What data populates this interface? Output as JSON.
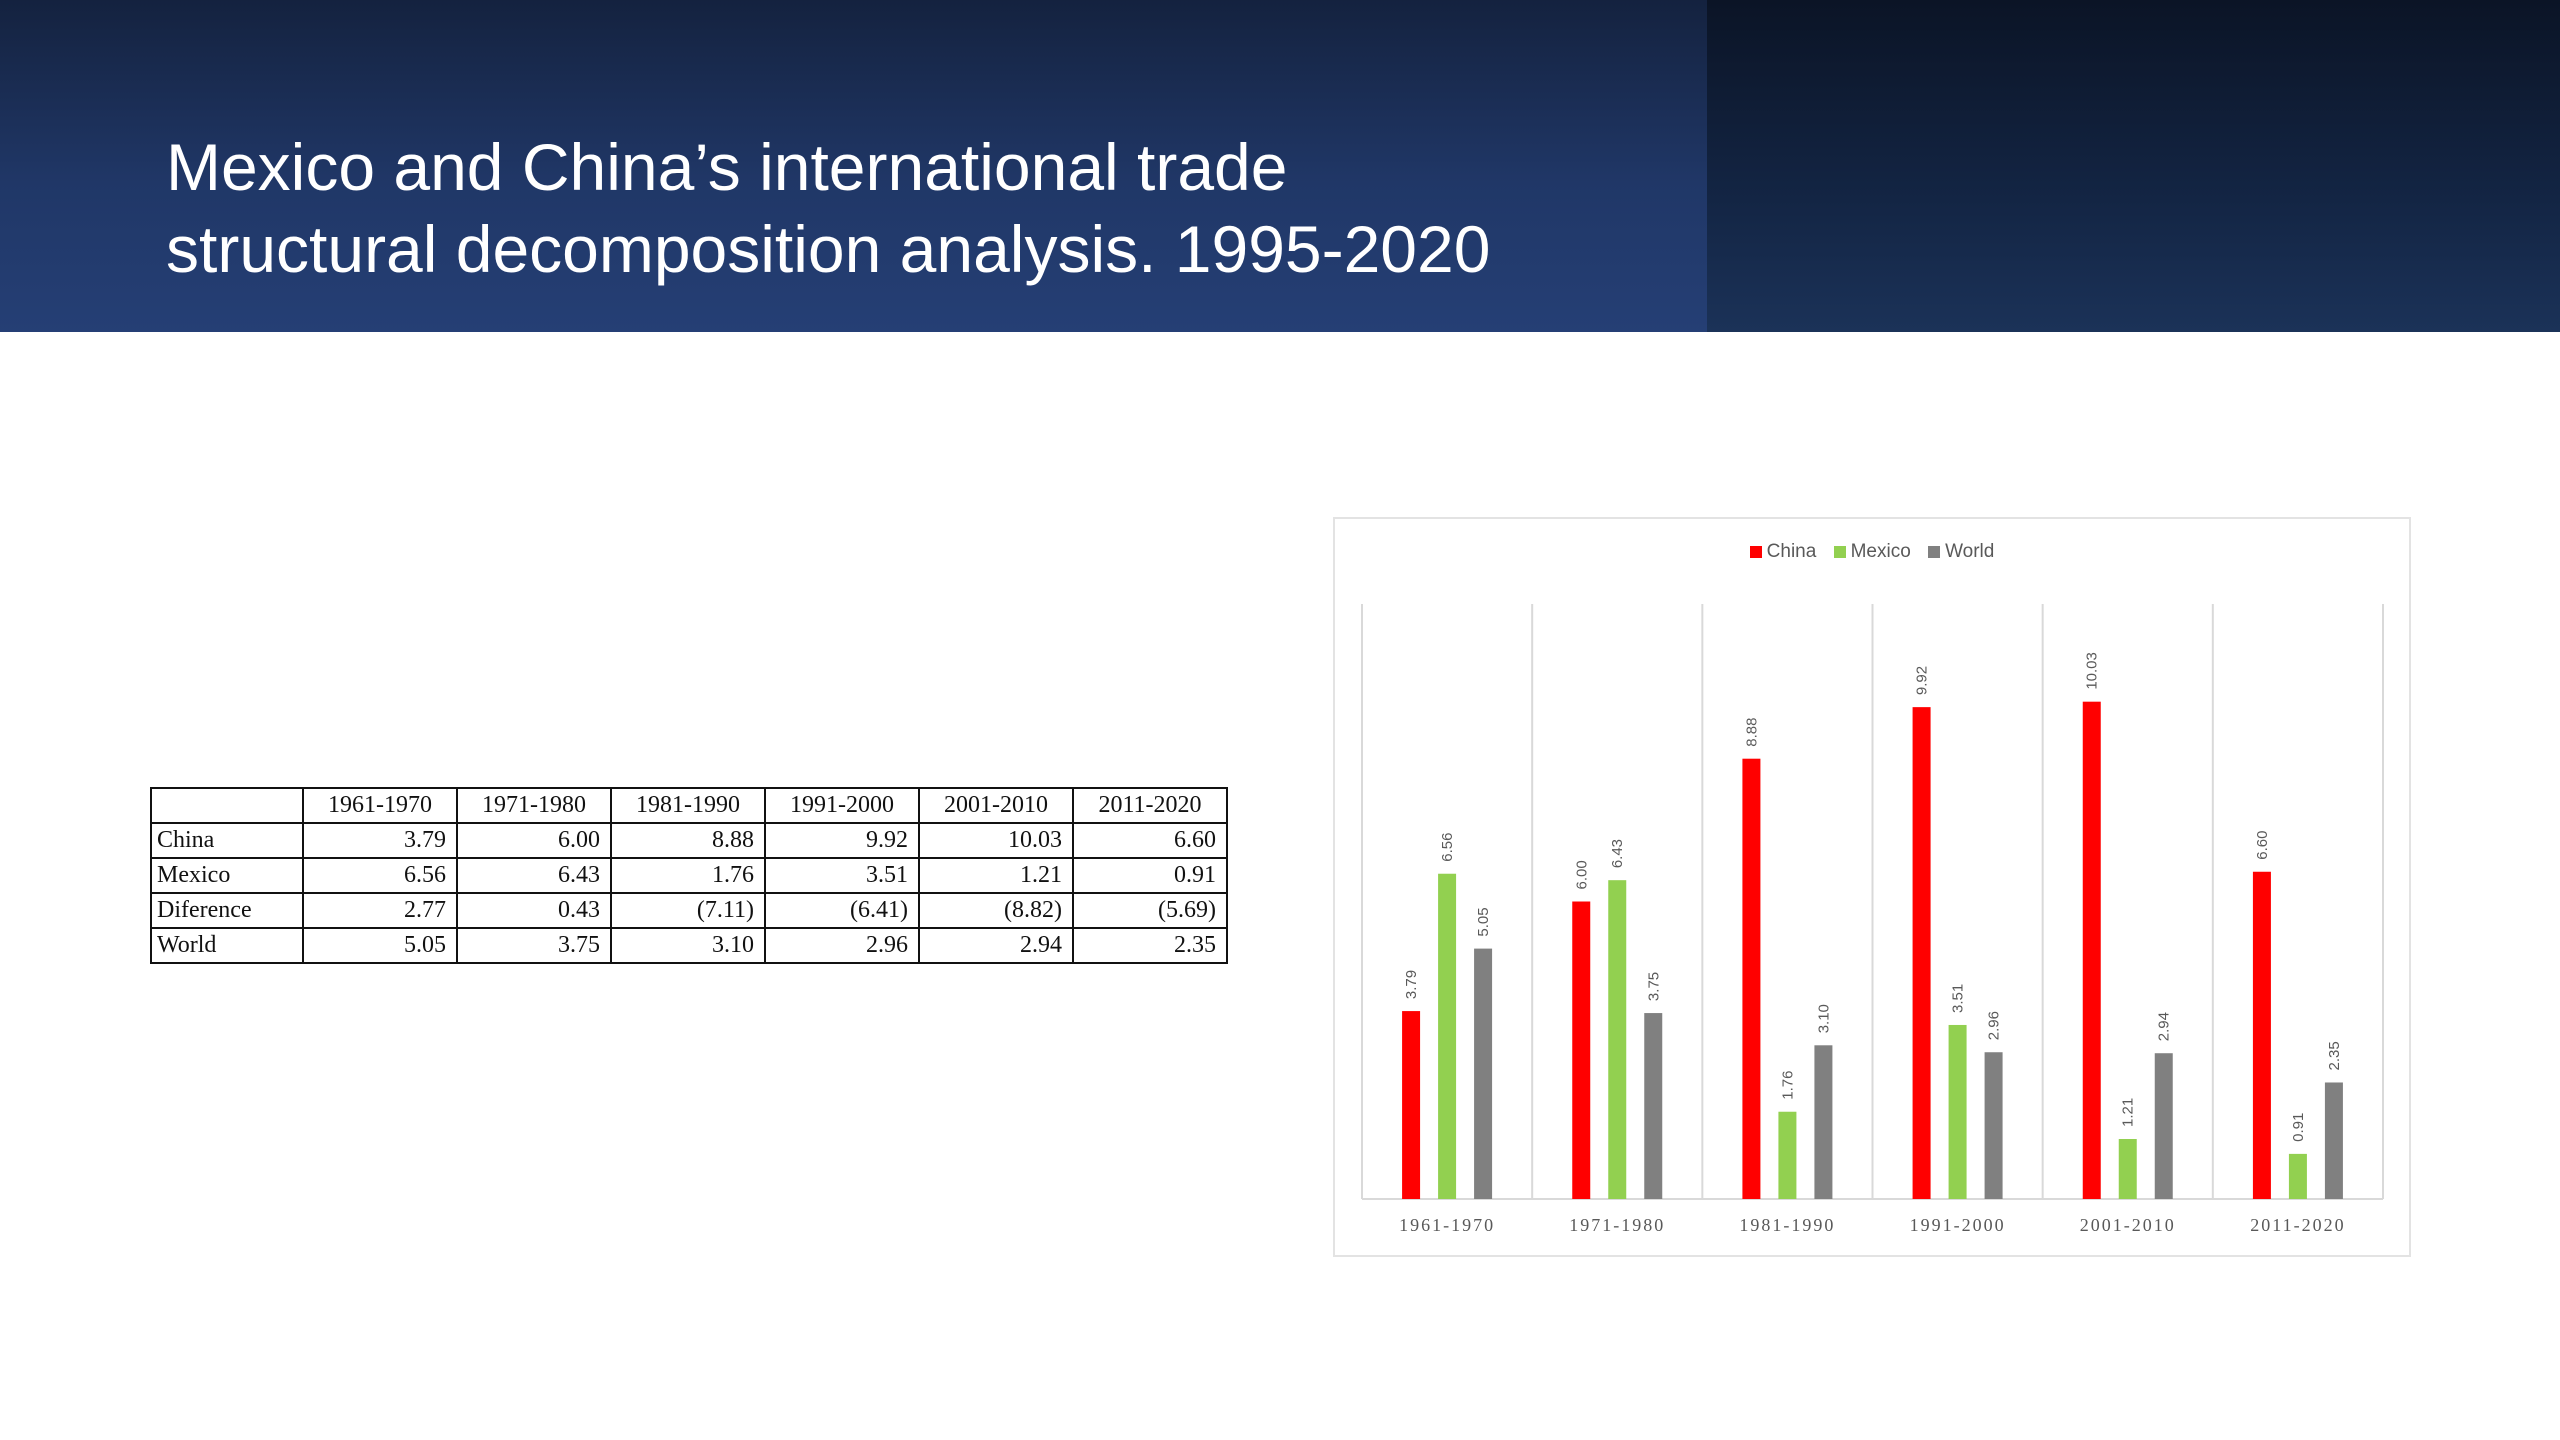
{
  "slide": {
    "title_line1": "Mexico and China’s international trade",
    "title_line2": "structural decomposition analysis. 1995-2020"
  },
  "table": {
    "headers": [
      "",
      "1961-1970",
      "1971-1980",
      "1981-1990",
      "1991-2000",
      "2001-2010",
      "2011-2020"
    ],
    "rows": [
      {
        "label": "China",
        "values": [
          "3.79",
          "6.00",
          "8.88",
          "9.92",
          "10.03",
          "6.60"
        ]
      },
      {
        "label": "Mexico",
        "values": [
          "6.56",
          "6.43",
          "1.76",
          "3.51",
          "1.21",
          "0.91"
        ]
      },
      {
        "label": "Diference",
        "values": [
          "2.77",
          "0.43",
          "(7.11)",
          "(6.41)",
          "(8.82)",
          "(5.69)"
        ]
      },
      {
        "label": "World",
        "values": [
          "5.05",
          "3.75",
          "3.10",
          "2.96",
          "2.94",
          "2.35"
        ]
      }
    ]
  },
  "chart_data": {
    "type": "bar",
    "categories": [
      "1961-1970",
      "1971-1980",
      "1981-1990",
      "1991-2000",
      "2001-2010",
      "2011-2020"
    ],
    "series": [
      {
        "name": "China",
        "color": "#ff0000",
        "values": [
          3.79,
          6.0,
          8.88,
          9.92,
          10.03,
          6.6
        ]
      },
      {
        "name": "Mexico",
        "color": "#92d050",
        "values": [
          6.56,
          6.43,
          1.76,
          3.51,
          1.21,
          0.91
        ]
      },
      {
        "name": "World",
        "color": "#808080",
        "values": [
          5.05,
          3.75,
          3.1,
          2.96,
          2.94,
          2.35
        ]
      }
    ],
    "data_labels": true,
    "label_format": "0.00",
    "ylim": [
      0,
      12
    ],
    "y_axis_visible": false,
    "grid": "vertical category separators",
    "legend": "top-center"
  }
}
